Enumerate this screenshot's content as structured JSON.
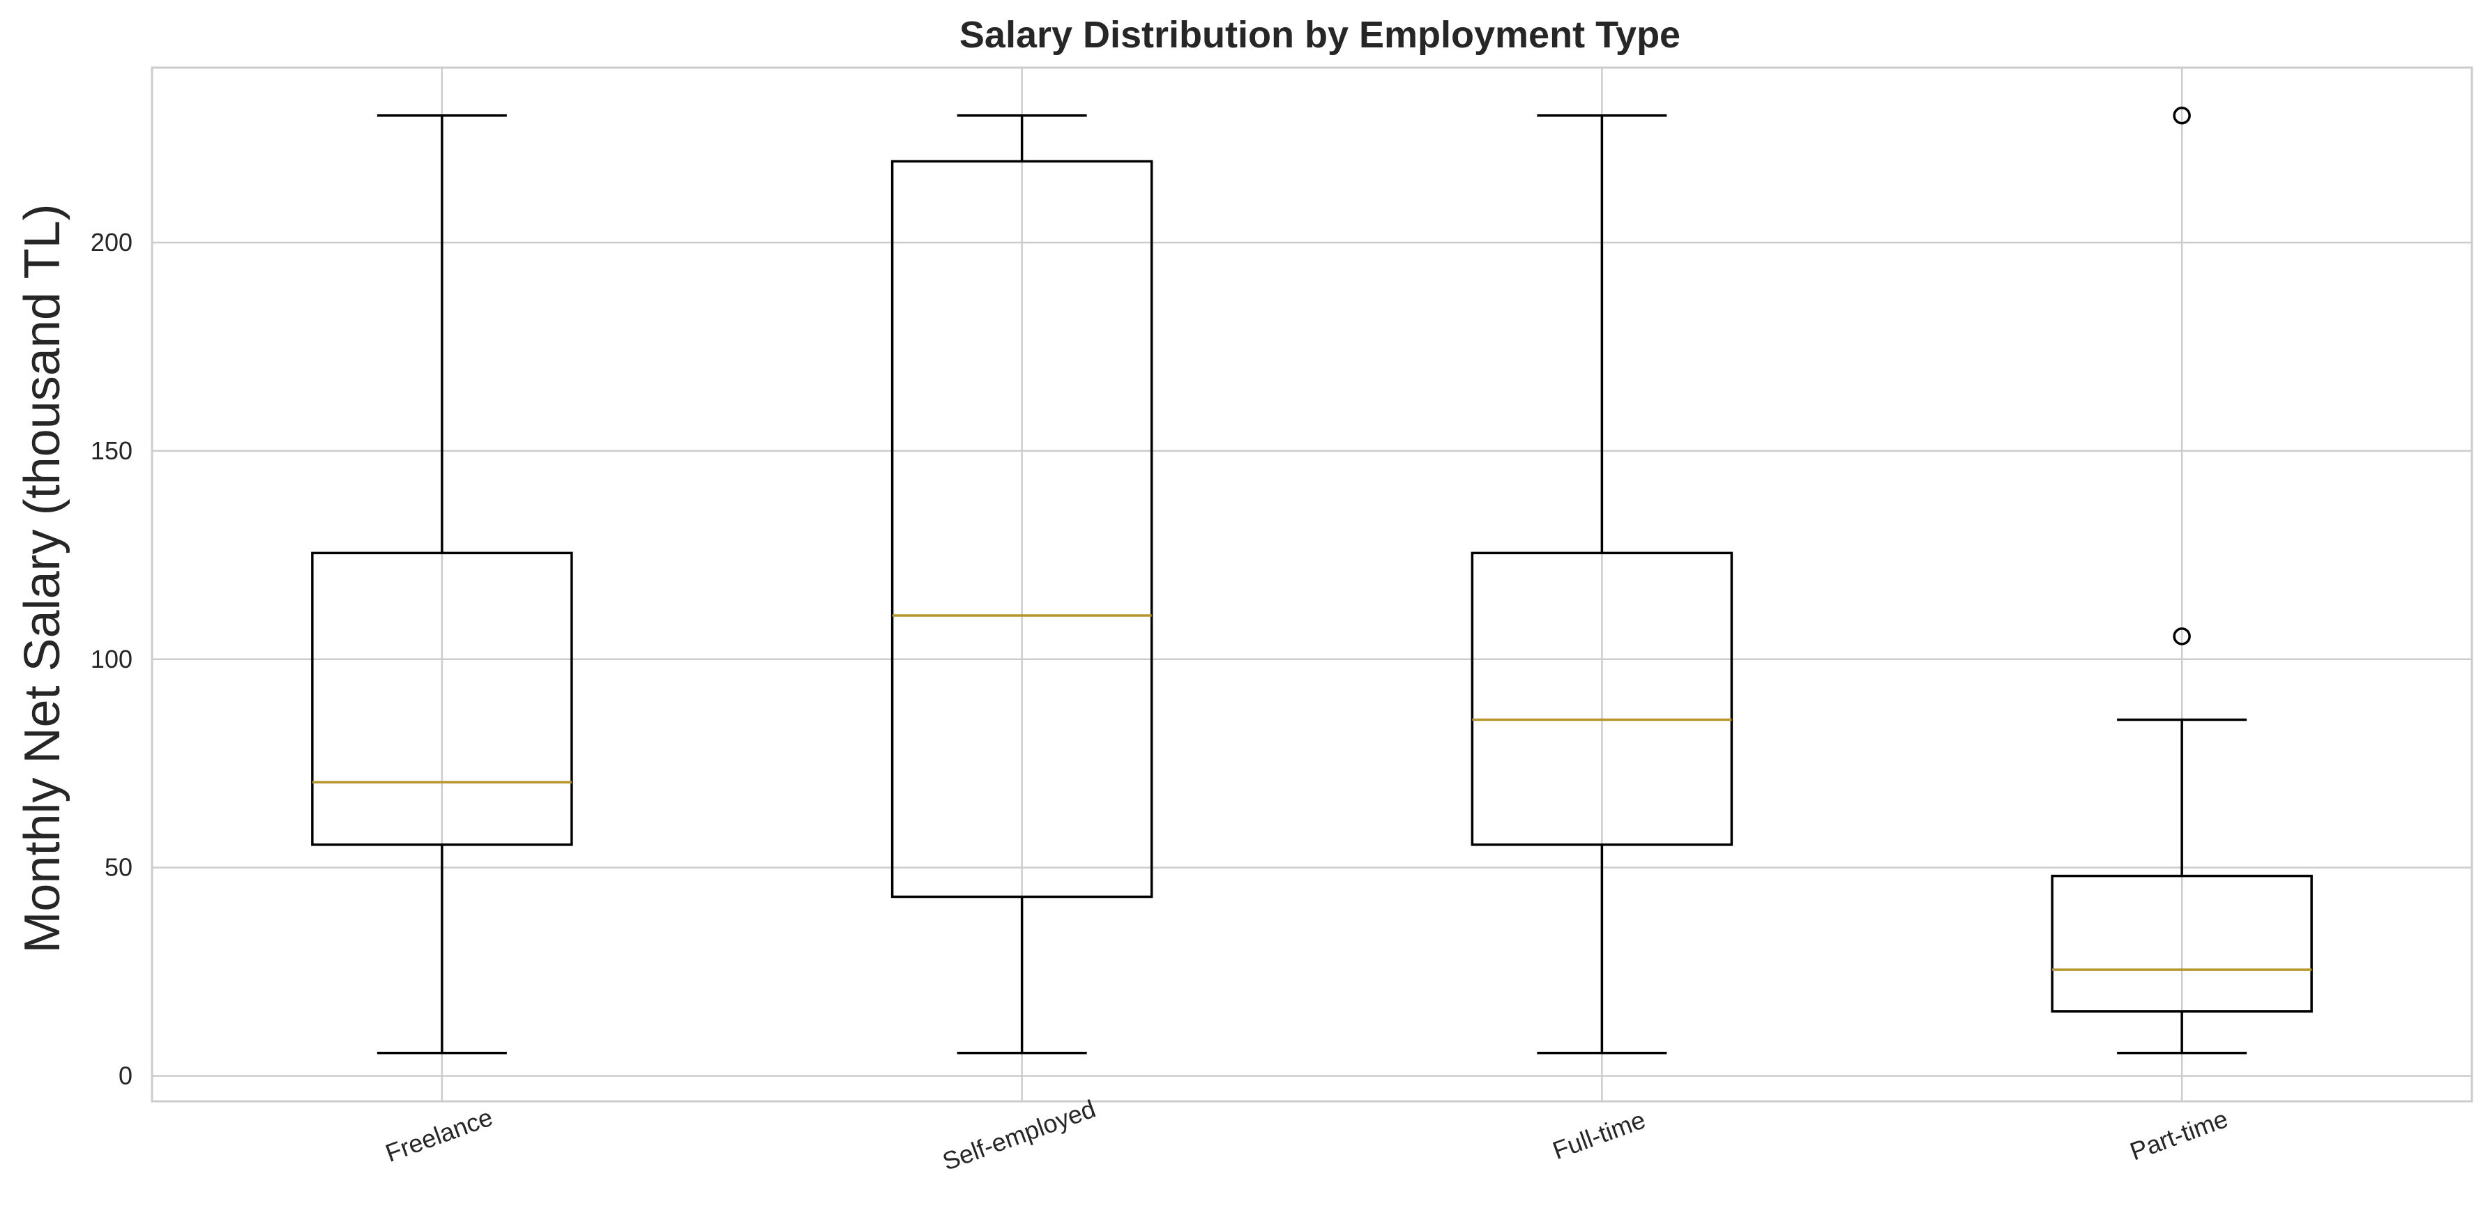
{
  "chart_data": {
    "type": "box",
    "title": "Salary Distribution by Employment Type",
    "ylabel": "Monthly Net Salary (thousand TL)",
    "xlabel": "",
    "ylim": [
      -6.1,
      242
    ],
    "yticks": [
      0,
      50,
      100,
      150,
      200
    ],
    "grid": true,
    "median_color": "#b8962e",
    "box_color": "#000000",
    "grid_color": "#cccccc",
    "categories": [
      "Freelance",
      "Self-employed",
      "Full-time",
      "Part-time"
    ],
    "boxes": [
      {
        "category": "Freelance",
        "whisker_low": 5.5,
        "q1": 55.5,
        "median": 70.5,
        "q3": 125.5,
        "whisker_high": 230.5,
        "fliers": []
      },
      {
        "category": "Self-employed",
        "whisker_low": 5.5,
        "q1": 43.0,
        "median": 110.5,
        "q3": 219.5,
        "whisker_high": 230.5,
        "fliers": []
      },
      {
        "category": "Full-time",
        "whisker_low": 5.5,
        "q1": 55.5,
        "median": 85.5,
        "q3": 125.5,
        "whisker_high": 230.5,
        "fliers": []
      },
      {
        "category": "Part-time",
        "whisker_low": 5.5,
        "q1": 15.5,
        "median": 25.5,
        "q3": 48.0,
        "whisker_high": 85.5,
        "fliers": [
          105.5,
          230.5
        ]
      }
    ]
  }
}
